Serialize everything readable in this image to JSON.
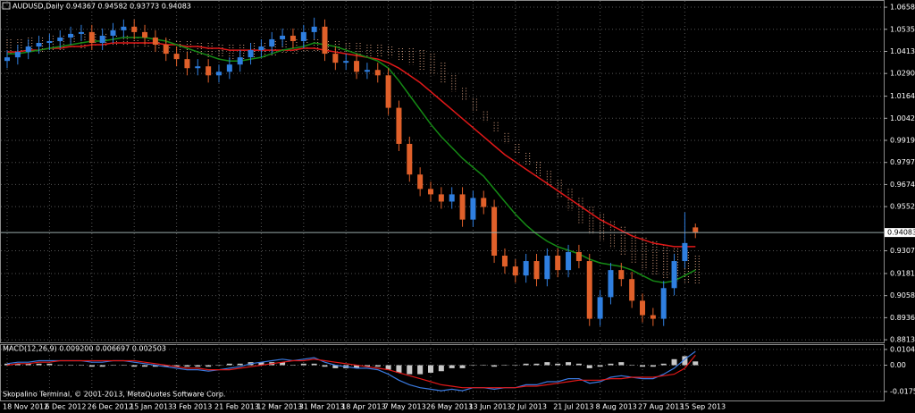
{
  "chart_data": [
    {
      "type": "candlestick",
      "title": "AUDUSD,Daily  0.94367 0.94582 0.93773 0.94083",
      "categories": [
        "18 Nov 2012",
        null,
        null,
        null,
        "6 Dec 2012",
        null,
        null,
        null,
        "26 Dec 2012",
        null,
        null,
        null,
        "15 Jan 2013",
        null,
        null,
        null,
        "3 Feb 2013",
        null,
        null,
        null,
        "21 Feb 2013",
        null,
        null,
        null,
        "12 Mar 2013",
        null,
        null,
        null,
        "31 Mar 2013",
        null,
        null,
        null,
        "18 Apr 2013",
        null,
        null,
        null,
        "7 May 2013",
        null,
        null,
        null,
        "26 May 2013",
        null,
        null,
        null,
        "13 Jun 2013",
        null,
        null,
        null,
        "2 Jul 2013",
        null,
        null,
        null,
        "21 Jul 2013",
        null,
        null,
        null,
        "8 Aug 2013",
        null,
        null,
        null,
        "27 Aug 2013",
        null,
        null,
        null,
        "15 Sep 2013",
        null
      ],
      "open": [
        1.036,
        1.038,
        1.041,
        1.044,
        1.046,
        1.047,
        1.049,
        1.051,
        1.052,
        1.046,
        1.05,
        1.053,
        1.055,
        1.052,
        1.049,
        1.045,
        1.04,
        1.037,
        1.032,
        1.033,
        1.028,
        1.03,
        1.034,
        1.038,
        1.042,
        1.044,
        1.048,
        1.05,
        1.047,
        1.052,
        1.055,
        1.04,
        1.035,
        1.036,
        1.03,
        1.031,
        1.028,
        1.01,
        0.99,
        0.973,
        0.965,
        0.962,
        0.958,
        0.962,
        0.948,
        0.96,
        0.955,
        0.928,
        0.922,
        0.917,
        0.925,
        0.915,
        0.928,
        0.92,
        0.93,
        0.925,
        0.893,
        0.905,
        0.92,
        0.915,
        0.903,
        0.895,
        0.893,
        0.91,
        0.925,
        0.94367
      ],
      "high": [
        1.042,
        1.045,
        1.048,
        1.05,
        1.051,
        1.053,
        1.055,
        1.056,
        1.056,
        1.054,
        1.057,
        1.059,
        1.059,
        1.056,
        1.053,
        1.049,
        1.044,
        1.041,
        1.037,
        1.037,
        1.034,
        1.038,
        1.042,
        1.046,
        1.048,
        1.052,
        1.054,
        1.054,
        1.056,
        1.06,
        1.059,
        1.044,
        1.04,
        1.04,
        1.035,
        1.035,
        1.032,
        1.014,
        0.994,
        0.977,
        0.969,
        0.966,
        0.966,
        0.966,
        0.964,
        0.964,
        0.959,
        0.932,
        0.926,
        0.929,
        0.929,
        0.932,
        0.932,
        0.934,
        0.934,
        0.929,
        0.909,
        0.924,
        0.924,
        0.919,
        0.907,
        0.899,
        0.914,
        0.929,
        0.952,
        0.94582
      ],
      "low": [
        1.032,
        1.034,
        1.037,
        1.04,
        1.042,
        1.043,
        1.045,
        1.047,
        1.042,
        1.042,
        1.046,
        1.049,
        1.048,
        1.045,
        1.041,
        1.036,
        1.033,
        1.028,
        1.028,
        1.024,
        1.024,
        1.026,
        1.03,
        1.034,
        1.038,
        1.04,
        1.044,
        1.043,
        1.043,
        1.048,
        1.036,
        1.031,
        1.031,
        1.026,
        1.026,
        1.024,
        1.006,
        0.986,
        0.969,
        0.961,
        0.958,
        0.954,
        0.954,
        0.944,
        0.944,
        0.951,
        0.924,
        0.918,
        0.913,
        0.913,
        0.911,
        0.911,
        0.916,
        0.916,
        0.921,
        0.889,
        0.889,
        0.901,
        0.911,
        0.899,
        0.891,
        0.889,
        0.889,
        0.906,
        0.921,
        0.93773
      ],
      "close": [
        1.038,
        1.041,
        1.044,
        1.046,
        1.047,
        1.049,
        1.051,
        1.052,
        1.046,
        1.05,
        1.053,
        1.055,
        1.052,
        1.049,
        1.045,
        1.04,
        1.037,
        1.032,
        1.033,
        1.028,
        1.03,
        1.034,
        1.038,
        1.042,
        1.044,
        1.048,
        1.05,
        1.047,
        1.052,
        1.055,
        1.04,
        1.035,
        1.036,
        1.03,
        1.031,
        1.028,
        1.01,
        0.99,
        0.973,
        0.965,
        0.962,
        0.958,
        0.962,
        0.948,
        0.96,
        0.955,
        0.928,
        0.922,
        0.917,
        0.925,
        0.915,
        0.928,
        0.92,
        0.93,
        0.925,
        0.893,
        0.905,
        0.92,
        0.915,
        0.903,
        0.895,
        0.893,
        0.91,
        0.925,
        0.935,
        0.94083
      ],
      "up_color": "#2f7fe0",
      "down_color": "#e0602a",
      "series": [
        {
          "color": "#e01818",
          "values": [
            1.041,
            1.041,
            1.042,
            1.042,
            1.043,
            1.043,
            1.044,
            1.044,
            1.045,
            1.045,
            1.046,
            1.046,
            1.046,
            1.046,
            1.046,
            1.045,
            1.045,
            1.044,
            1.044,
            1.043,
            1.043,
            1.042,
            1.042,
            1.042,
            1.042,
            1.042,
            1.042,
            1.042,
            1.043,
            1.043,
            1.042,
            1.041,
            1.04,
            1.039,
            1.038,
            1.037,
            1.035,
            1.032,
            1.028,
            1.024,
            1.019,
            1.014,
            1.009,
            1.004,
            0.999,
            0.994,
            0.989,
            0.984,
            0.98,
            0.976,
            0.972,
            0.968,
            0.964,
            0.96,
            0.956,
            0.952,
            0.948,
            0.945,
            0.942,
            0.939,
            0.937,
            0.935,
            0.934,
            0.933,
            0.933,
            0.933
          ]
        },
        {
          "color": "#158a15",
          "values": [
            1.04,
            1.04,
            1.041,
            1.042,
            1.043,
            1.044,
            1.045,
            1.046,
            1.047,
            1.047,
            1.048,
            1.049,
            1.049,
            1.049,
            1.048,
            1.047,
            1.045,
            1.043,
            1.041,
            1.039,
            1.037,
            1.036,
            1.036,
            1.037,
            1.038,
            1.04,
            1.042,
            1.043,
            1.044,
            1.046,
            1.045,
            1.044,
            1.042,
            1.04,
            1.038,
            1.036,
            1.032,
            1.025,
            1.017,
            1.009,
            1.001,
            0.994,
            0.988,
            0.982,
            0.977,
            0.972,
            0.965,
            0.958,
            0.951,
            0.945,
            0.94,
            0.936,
            0.933,
            0.931,
            0.929,
            0.926,
            0.924,
            0.923,
            0.922,
            0.92,
            0.917,
            0.914,
            0.913,
            0.914,
            0.917,
            0.92
          ]
        }
      ],
      "cloud": {
        "color": "#d9a080",
        "upper": [
          1.048,
          1.048,
          1.049,
          1.049,
          1.05,
          1.05,
          1.05,
          1.051,
          1.051,
          1.051,
          1.05,
          1.05,
          1.049,
          1.049,
          1.048,
          1.048,
          1.047,
          1.047,
          1.046,
          1.046,
          1.045,
          1.045,
          1.045,
          1.046,
          1.046,
          1.047,
          1.047,
          1.048,
          1.048,
          1.048,
          1.047,
          1.047,
          1.046,
          1.046,
          1.045,
          1.045,
          1.044,
          1.043,
          1.043,
          1.042,
          1.04,
          1.035,
          1.028,
          1.021,
          1.015,
          1.008,
          1.002,
          0.996,
          0.99,
          0.985,
          0.98,
          0.975,
          0.97,
          0.965,
          0.96,
          0.955,
          0.951,
          0.947,
          0.944,
          0.941,
          0.938,
          0.936,
          0.934,
          0.932,
          0.93,
          0.928
        ],
        "lower": [
          1.04,
          1.04,
          1.041,
          1.041,
          1.042,
          1.042,
          1.043,
          1.043,
          1.044,
          1.044,
          1.044,
          1.044,
          1.043,
          1.043,
          1.042,
          1.042,
          1.041,
          1.04,
          1.039,
          1.038,
          1.038,
          1.037,
          1.037,
          1.038,
          1.038,
          1.039,
          1.04,
          1.04,
          1.041,
          1.041,
          1.04,
          1.04,
          1.039,
          1.039,
          1.038,
          1.038,
          1.038,
          1.036,
          1.034,
          1.031,
          1.028,
          1.024,
          1.019,
          1.014,
          1.008,
          1.002,
          0.997,
          0.99,
          0.984,
          0.978,
          0.972,
          0.966,
          0.96,
          0.953,
          0.946,
          0.94,
          0.936,
          0.932,
          0.928,
          0.924,
          0.92,
          0.917,
          0.915,
          0.914,
          0.913,
          0.912
        ]
      },
      "price_line": 0.94083,
      "ylim": [
        0.8799,
        1.0693
      ],
      "yticks": [
        1.0658,
        1.05355,
        1.0413,
        1.02905,
        1.01645,
        1.0042,
        0.99195,
        0.9797,
        0.96745,
        0.9552,
        0.9307,
        0.9181,
        0.90585,
        0.8936,
        0.88135
      ],
      "grid": true
    },
    {
      "type": "macd",
      "title": "MACD(12,26,9) 0.009200 0.006697 0.002503",
      "macd": {
        "color": "#3a7ae0",
        "values": [
          0.001,
          0.002,
          0.002,
          0.003,
          0.003,
          0.003,
          0.003,
          0.003,
          0.002,
          0.002,
          0.003,
          0.003,
          0.002,
          0.001,
          0.0,
          -0.001,
          -0.002,
          -0.003,
          -0.003,
          -0.004,
          -0.003,
          -0.002,
          -0.001,
          0.001,
          0.002,
          0.003,
          0.004,
          0.003,
          0.004,
          0.005,
          0.002,
          0.0,
          -0.001,
          -0.002,
          -0.002,
          -0.003,
          -0.006,
          -0.01,
          -0.013,
          -0.015,
          -0.016,
          -0.017,
          -0.016,
          -0.017,
          -0.015,
          -0.015,
          -0.016,
          -0.015,
          -0.015,
          -0.013,
          -0.013,
          -0.011,
          -0.011,
          -0.009,
          -0.009,
          -0.012,
          -0.011,
          -0.008,
          -0.007,
          -0.008,
          -0.009,
          -0.009,
          -0.006,
          -0.002,
          0.004,
          0.0092
        ]
      },
      "signal": {
        "color": "#e01818",
        "values": [
          0.0,
          0.001,
          0.001,
          0.002,
          0.002,
          0.003,
          0.003,
          0.003,
          0.003,
          0.003,
          0.003,
          0.003,
          0.003,
          0.002,
          0.001,
          0.0,
          -0.001,
          -0.002,
          -0.002,
          -0.003,
          -0.003,
          -0.003,
          -0.002,
          -0.001,
          0.0,
          0.001,
          0.002,
          0.003,
          0.003,
          0.004,
          0.003,
          0.002,
          0.001,
          0.0,
          -0.001,
          -0.002,
          -0.003,
          -0.005,
          -0.007,
          -0.009,
          -0.011,
          -0.013,
          -0.014,
          -0.015,
          -0.015,
          -0.015,
          -0.015,
          -0.015,
          -0.015,
          -0.014,
          -0.014,
          -0.013,
          -0.012,
          -0.011,
          -0.01,
          -0.01,
          -0.01,
          -0.009,
          -0.009,
          -0.008,
          -0.008,
          -0.008,
          -0.007,
          -0.006,
          -0.002,
          0.006697
        ]
      },
      "histogram": {
        "color": "#c8c8c8",
        "values": [
          0.001,
          0.001,
          0.001,
          0.001,
          0.001,
          0,
          0,
          0,
          -0.001,
          -0.001,
          0,
          0,
          -0.001,
          -0.001,
          -0.001,
          -0.001,
          -0.001,
          -0.001,
          -0.001,
          -0.001,
          0,
          0.001,
          0.001,
          0.002,
          0.002,
          0.002,
          0.002,
          0,
          0.001,
          0.001,
          -0.001,
          -0.002,
          -0.002,
          -0.002,
          -0.001,
          -0.001,
          -0.003,
          -0.005,
          -0.006,
          -0.006,
          -0.005,
          -0.004,
          -0.002,
          -0.002,
          0,
          0,
          -0.001,
          0,
          0,
          0.001,
          0.001,
          0.002,
          0.001,
          0.002,
          0.001,
          -0.002,
          -0.001,
          0.001,
          0.002,
          0,
          -0.001,
          -0.001,
          0.001,
          0.004,
          0.006,
          0.002503
        ]
      },
      "ylim": [
        -0.0235,
        0.0134
      ],
      "yticks": [
        0.010475,
        {
          "value": 0,
          "label": "0.00"
        },
        -0.01757
      ]
    }
  ],
  "footer": "Skopalino Terminal, © 2001-2013, MetaQuotes Software Corp."
}
